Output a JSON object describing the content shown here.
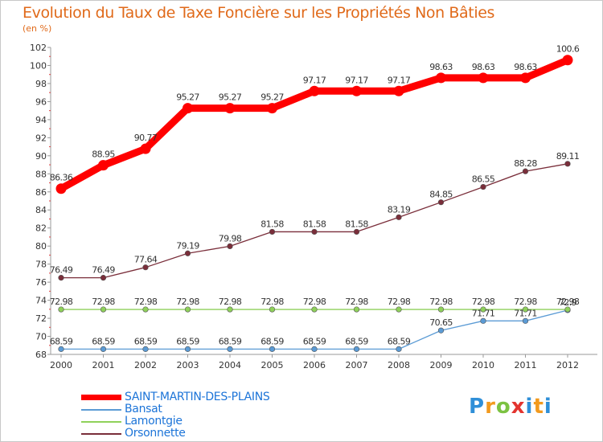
{
  "title": "Evolution du Taux de Taxe Foncière sur les Propriétés Non Bâties",
  "unit_label": "(en %)",
  "logo": {
    "text": "Proxiti",
    "colors": [
      "#2f8fd8",
      "#f29a1e",
      "#7cc242",
      "#e3342f",
      "#2f8fd8",
      "#f29a1e"
    ]
  },
  "chart_data": {
    "type": "line",
    "title": "Evolution du Taux de Taxe Foncière sur les Propriétés Non Bâties",
    "ylabel": "(en %)",
    "xlabel": "",
    "x": [
      "2000",
      "2001",
      "2002",
      "2003",
      "2004",
      "2005",
      "2006",
      "2007",
      "2008",
      "2009",
      "2010",
      "2011",
      "2012"
    ],
    "ylim": [
      68,
      102
    ],
    "yticks": [
      "68",
      "70",
      "72",
      "74",
      "76",
      "78",
      "80",
      "82",
      "84",
      "86",
      "88",
      "90",
      "92",
      "94",
      "96",
      "98",
      "100",
      "102"
    ],
    "grid": false,
    "legend": "bottom-left",
    "series": [
      {
        "name": "SAINT-MARTIN-DES-PLAINS",
        "color": "#ff0000",
        "values": [
          86.36,
          88.95,
          90.77,
          95.27,
          95.27,
          95.27,
          97.17,
          97.17,
          97.17,
          98.63,
          98.63,
          98.63,
          100.6
        ],
        "labels": [
          "86.36",
          "88.95",
          "90.77",
          "95.27",
          "95.27",
          "95.27",
          "97.17",
          "97.17",
          "97.17",
          "98.63",
          "98.63",
          "98.63",
          "100.6"
        ]
      },
      {
        "name": "Bansat",
        "color": "#5b9bd5",
        "values": [
          68.59,
          68.59,
          68.59,
          68.59,
          68.59,
          68.59,
          68.59,
          68.59,
          68.59,
          70.65,
          71.71,
          71.71,
          72.9
        ],
        "labels": [
          "68.59",
          "68.59",
          "68.59",
          "68.59",
          "68.59",
          "68.59",
          "68.59",
          "68.59",
          "68.59",
          "70.65",
          "71.71",
          "71.71",
          "72.9"
        ]
      },
      {
        "name": "Lamontgie",
        "color": "#8fd15a",
        "values": [
          72.98,
          72.98,
          72.98,
          72.98,
          72.98,
          72.98,
          72.98,
          72.98,
          72.98,
          72.98,
          72.98,
          72.98,
          72.98
        ],
        "labels": [
          "72.98",
          "72.98",
          "72.98",
          "72.98",
          "72.98",
          "72.98",
          "72.98",
          "72.98",
          "72.98",
          "72.98",
          "72.98",
          "72.98",
          "72.98"
        ]
      },
      {
        "name": "Orsonnette",
        "color": "#7a2e3a",
        "values": [
          76.49,
          76.49,
          77.64,
          79.19,
          79.98,
          81.58,
          81.58,
          81.58,
          83.19,
          84.85,
          86.55,
          88.28,
          89.11
        ],
        "labels": [
          "76.49",
          "76.49",
          "77.64",
          "79.19",
          "79.98",
          "81.58",
          "81.58",
          "81.58",
          "83.19",
          "84.85",
          "86.55",
          "88.28",
          "89.11"
        ]
      }
    ]
  }
}
